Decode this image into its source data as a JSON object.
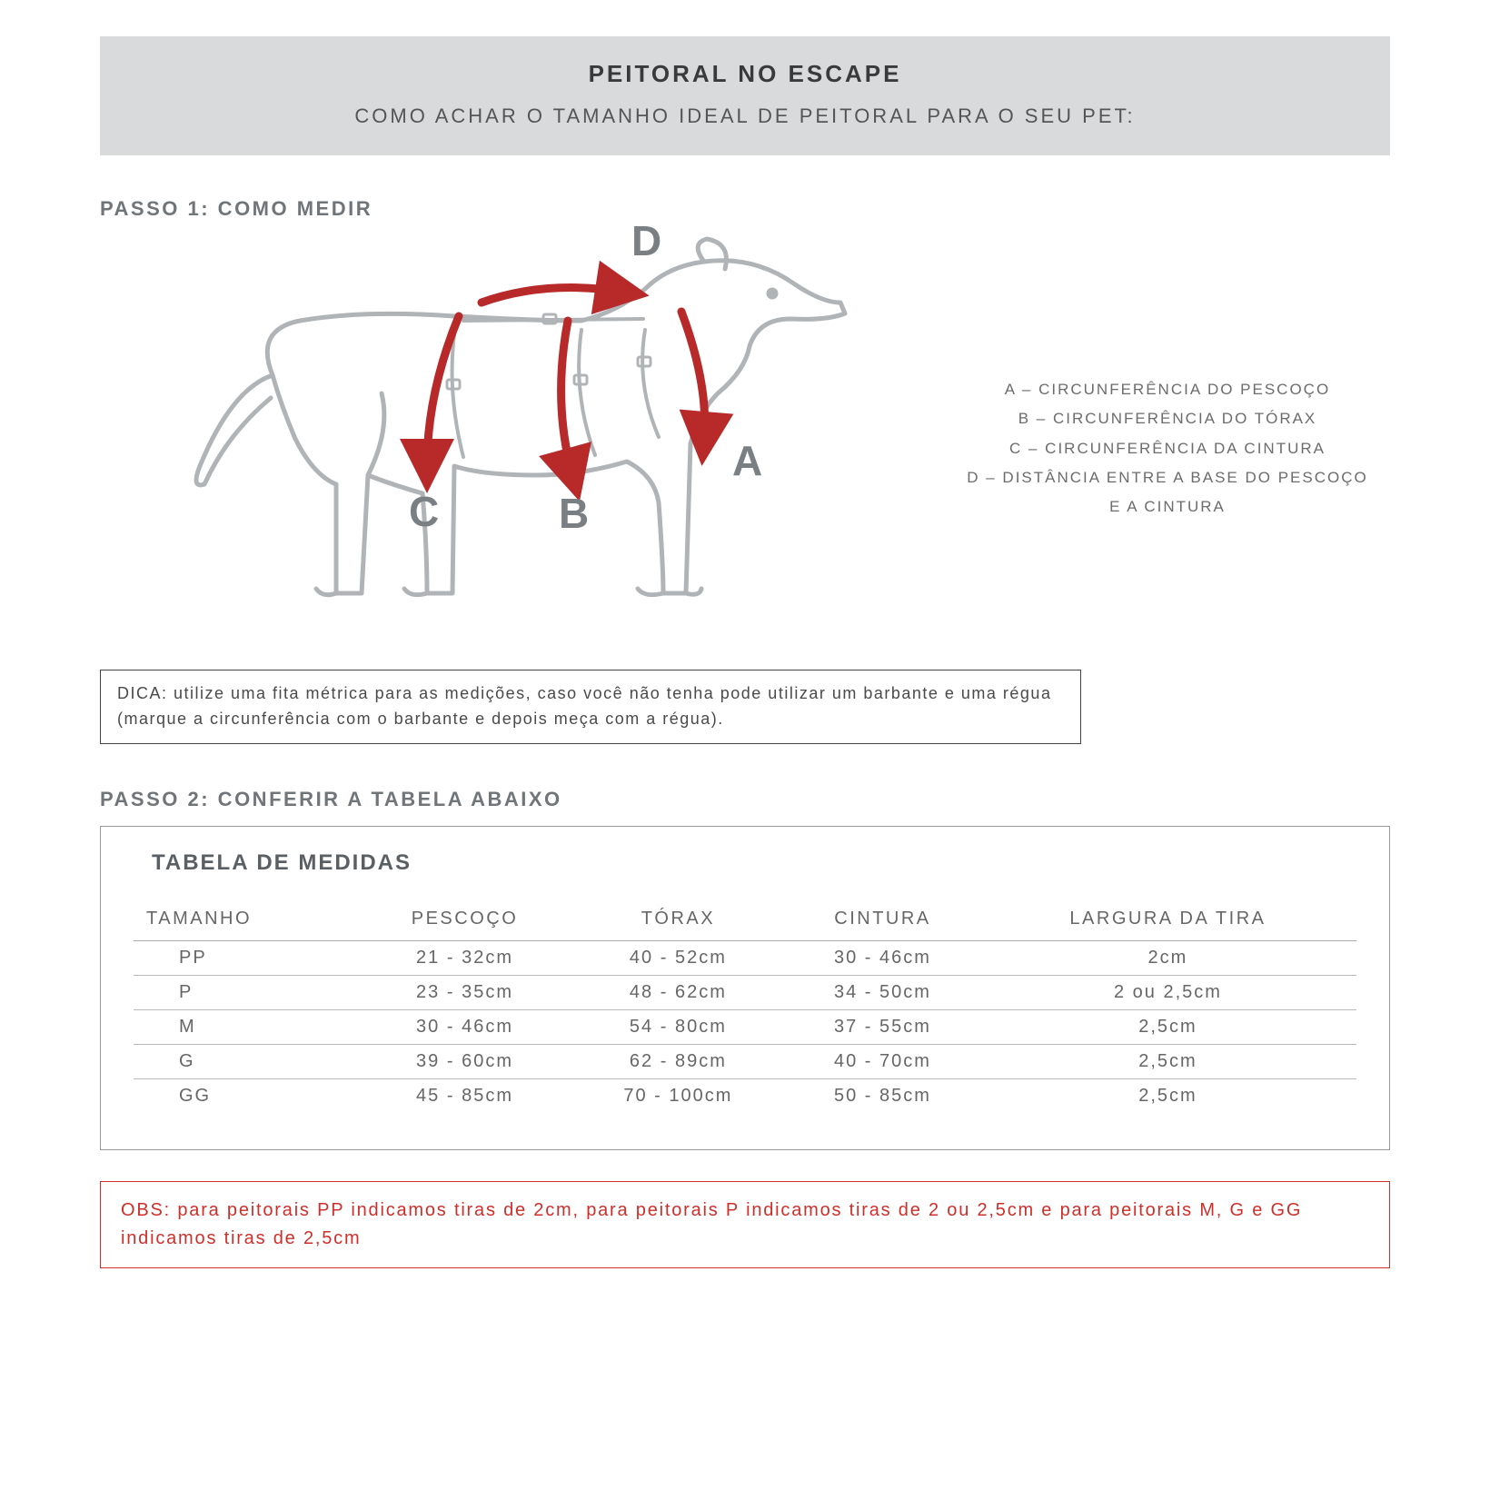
{
  "colors": {
    "headerBg": "#d9dadb",
    "textDark": "#3a3a3a",
    "textGrey": "#707579",
    "dogStroke": "#b0b4b7",
    "arrow": "#b82a2a",
    "obs": "#cf2f2a",
    "border": "#999"
  },
  "header": {
    "title": "PEITORAL NO ESCAPE",
    "subtitle": "COMO ACHAR O TAMANHO IDEAL DE PEITORAL PARA O SEU PET:"
  },
  "step1": {
    "label": "PASSO 1: COMO MEDIR",
    "markers": {
      "A": "A",
      "B": "B",
      "C": "C",
      "D": "D"
    },
    "legend": [
      "A – CIRCUNFERÊNCIA DO PESCOÇO",
      "B – CIRCUNFERÊNCIA DO TÓRAX",
      "C – CIRCUNFERÊNCIA DA CINTURA",
      "D – DISTÂNCIA ENTRE A BASE DO PESCOÇO",
      "E A CINTURA"
    ],
    "tip": "DICA: utilize uma fita métrica para as medições, caso você não tenha pode utilizar um barbante e uma régua (marque a circunferência com o barbante e depois meça com a régua)."
  },
  "step2": {
    "label": "PASSO 2: CONFERIR A TABELA ABAIXO",
    "tableTitle": "TABELA DE MEDIDAS",
    "columns": [
      "TAMANHO",
      "PESCOÇO",
      "TÓRAX",
      "CINTURA",
      "LARGURA DA TIRA"
    ],
    "rows": [
      [
        "PP",
        "21 - 32cm",
        "40 - 52cm",
        "30 - 46cm",
        "2cm"
      ],
      [
        "P",
        "23 - 35cm",
        "48 - 62cm",
        "34 - 50cm",
        "2 ou 2,5cm"
      ],
      [
        "M",
        "30 - 46cm",
        "54 - 80cm",
        "37 - 55cm",
        "2,5cm"
      ],
      [
        "G",
        "39 - 60cm",
        "62 - 89cm",
        "40 - 70cm",
        "2,5cm"
      ],
      [
        "GG",
        "45 - 85cm",
        "70 - 100cm",
        "50 - 85cm",
        "2,5cm"
      ]
    ]
  },
  "obs": "OBS: para peitorais PP indicamos tiras de 2cm, para peitorais P indicamos tiras de 2 ou 2,5cm e para peitorais M, G e GG indicamos tiras de 2,5cm"
}
